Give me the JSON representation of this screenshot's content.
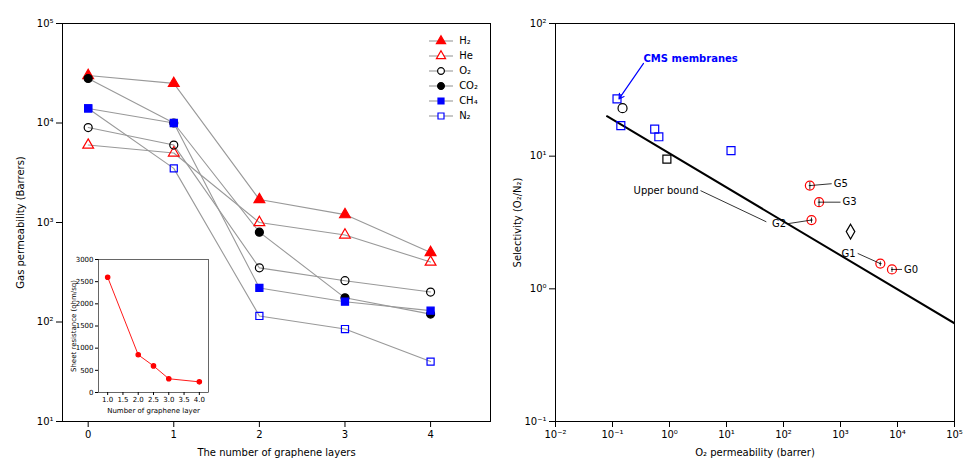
{
  "chart_data": [
    {
      "type": "line",
      "xlabel": "The number of graphene layers",
      "ylabel": "Gas permeability (Barrers)",
      "x": [
        0,
        1,
        2,
        3,
        4
      ],
      "xlim": [
        -0.3,
        4.7
      ],
      "xticks": [
        0,
        1,
        2,
        3,
        4
      ],
      "ylim": [
        10,
        100000
      ],
      "yticks": [
        {
          "value": 10,
          "label": "10¹"
        },
        {
          "value": 100,
          "label": "10²"
        },
        {
          "value": 1000,
          "label": "10³"
        },
        {
          "value": 10000,
          "label": "10⁴"
        },
        {
          "value": 100000,
          "label": "10⁵"
        }
      ],
      "log": "y",
      "grid": false,
      "legend": "upper-right",
      "series": [
        {
          "name": "H₂",
          "color": "red",
          "marker": "triangle",
          "values": [
            30000,
            25000,
            1700,
            1200,
            500
          ]
        },
        {
          "name": "He",
          "color": "red",
          "marker": "triangle-open",
          "values": [
            6000,
            5000,
            1000,
            750,
            400
          ]
        },
        {
          "name": "O₂",
          "color": "black",
          "marker": "circle-open",
          "values": [
            9000,
            6000,
            350,
            260,
            200
          ]
        },
        {
          "name": "CO₂",
          "color": "black",
          "marker": "circle",
          "values": [
            28000,
            10000,
            800,
            175,
            120
          ]
        },
        {
          "name": "CH₄",
          "color": "blue",
          "marker": "square",
          "values": [
            14000,
            10000,
            220,
            160,
            130
          ]
        },
        {
          "name": "N₂",
          "color": "blue",
          "marker": "square-open",
          "values": [
            14000,
            3500,
            115,
            85,
            40
          ]
        }
      ]
    },
    {
      "type": "line",
      "xlabel": "Number of graphene layer",
      "ylabel": "Sheet resistance (ohm/sq)",
      "x": [
        1.0,
        2.0,
        2.5,
        3.0,
        4.0
      ],
      "values": [
        2600,
        850,
        600,
        310,
        240
      ],
      "color": "red",
      "marker": "circle",
      "xlim": [
        0.7,
        4.3
      ],
      "xticks": [
        {
          "value": 1,
          "label": "1.0"
        },
        1.5,
        {
          "value": 2,
          "label": "2.0"
        },
        2.5,
        {
          "value": 3,
          "label": "3.0"
        },
        3.5,
        {
          "value": 4,
          "label": "4.0"
        }
      ],
      "ylim": [
        0,
        3000
      ],
      "yticks": [
        0,
        500,
        1000,
        1500,
        2000,
        2500,
        3000
      ],
      "grid": false
    },
    {
      "type": "scatter",
      "xlabel": "O₂ permeability (barrer)",
      "ylabel": "Selectivity (O₂/N₂)",
      "log": true,
      "xlim": [
        0.01,
        100000
      ],
      "xticks": [
        {
          "value": 0.01,
          "label": "10⁻²"
        },
        {
          "value": 0.1,
          "label": "10⁻¹"
        },
        {
          "value": 1,
          "label": "10⁰"
        },
        {
          "value": 10,
          "label": "10¹"
        },
        {
          "value": 100,
          "label": "10²"
        },
        {
          "value": 1000,
          "label": "10³"
        },
        {
          "value": 10000,
          "label": "10⁴"
        },
        {
          "value": 100000,
          "label": "10⁵"
        }
      ],
      "ylim": [
        0.1,
        100
      ],
      "yticks": [
        {
          "value": 0.1,
          "label": "10⁻¹"
        },
        {
          "value": 1,
          "label": "10⁰"
        },
        {
          "value": 10,
          "label": "10¹"
        },
        {
          "value": 100,
          "label": "10²"
        }
      ],
      "grid": false,
      "series": [
        {
          "type": "line",
          "color": "black",
          "x": [
            0.08,
            100000
          ],
          "values": [
            20,
            0.55
          ]
        },
        {
          "color": "blue",
          "marker": "square-open",
          "x": [
            0.12,
            0.14,
            0.55,
            0.65,
            12
          ],
          "values": [
            27,
            17,
            16,
            14,
            11
          ]
        },
        {
          "color": "black",
          "marker": "circle-open",
          "x": [
            0.15
          ],
          "values": [
            23
          ]
        },
        {
          "color": "black",
          "marker": "square-open",
          "x": [
            0.9
          ],
          "values": [
            9.5
          ]
        },
        {
          "color": "black",
          "marker": "diamond-open",
          "x": [
            1500
          ],
          "values": [
            2.7
          ]
        },
        {
          "color": "red",
          "marker": "circle-open",
          "x": [
            8000,
            5000,
            310,
            420,
            290
          ],
          "values": [
            1.4,
            1.55,
            3.3,
            4.5,
            6.0
          ],
          "x_err": [
            300,
            250,
            15,
            20,
            12.5
          ],
          "y_err": [
            0.06,
            0.06,
            0.15,
            0.3,
            0.4
          ]
        }
      ],
      "annotations": [
        {
          "text": "G0",
          "x": 8000,
          "y": 1.4,
          "text_x": 12000,
          "text_y": 1.4,
          "color": "black"
        },
        {
          "text": "G1",
          "x": 5000,
          "y": 1.55,
          "text_x": 2000,
          "text_y": 1.85,
          "color": "black"
        },
        {
          "text": "G2",
          "x": 310,
          "y": 3.3,
          "text_x": 120,
          "text_y": 3.1,
          "color": "black"
        },
        {
          "text": "G3",
          "x": 420,
          "y": 4.5,
          "text_x": 1000,
          "text_y": 4.5,
          "color": "black"
        },
        {
          "text": "G5",
          "x": 290,
          "y": 6.0,
          "text_x": 700,
          "text_y": 6.2,
          "color": "black"
        },
        {
          "text": "CMS membranes",
          "x": 0.13,
          "y": 27,
          "text_x": 0.35,
          "text_y": 50,
          "color": "blue",
          "arrow": true
        },
        {
          "text": "Upper bound",
          "x": 50,
          "y": 3.2,
          "text_x": 3.5,
          "text_y": 5.5,
          "color": "black"
        }
      ]
    }
  ]
}
